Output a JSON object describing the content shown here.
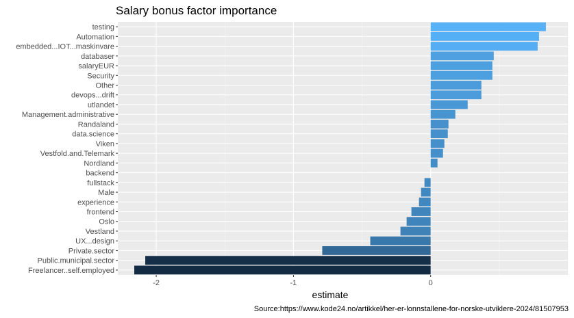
{
  "chart_data": {
    "type": "bar",
    "orientation": "horizontal",
    "title": "Salary bonus factor importance",
    "xlabel": "estimate",
    "ylabel": "",
    "xlim": [
      -2.28,
      1.0
    ],
    "x_ticks": [
      -2,
      -1,
      0
    ],
    "grid": true,
    "legend": "none",
    "color_scale": {
      "low": "#132b43",
      "high": "#56b1f7"
    },
    "categories": [
      "testing",
      "Automation",
      "embedded...IOT...maskinvare",
      "databaser",
      "salaryEUR",
      "Security",
      "Other",
      "devops...drift",
      "utlandet",
      "Management.administrative",
      "Randaland",
      "data.science",
      "Viken",
      "Vestfold.and.Telemark",
      "Nordland",
      "backend",
      "fullstack",
      "Male",
      "experience",
      "frontend",
      "Oslo",
      "Vestland",
      "UX...design",
      "Private.sector",
      "Public.municipal.sector",
      "Freelancer..self.employed"
    ],
    "values": [
      0.84,
      0.79,
      0.78,
      0.46,
      0.45,
      0.45,
      0.37,
      0.37,
      0.27,
      0.18,
      0.13,
      0.125,
      0.1,
      0.09,
      0.05,
      0.0,
      -0.045,
      -0.07,
      -0.085,
      -0.14,
      -0.175,
      -0.22,
      -0.44,
      -0.79,
      -2.08,
      -2.16
    ]
  },
  "source": "Source:https://www.kode24.no/artikkel/her-er-lonnstallene-for-norske-utviklere-2024/81507953"
}
